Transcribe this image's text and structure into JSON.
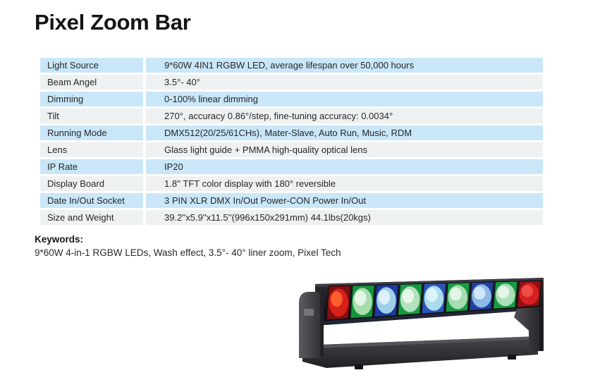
{
  "page": {
    "title": "Pixel Zoom Bar"
  },
  "spec_table": {
    "rows": [
      {
        "label": "Light Source",
        "value": "9*60W 4IN1 RGBW LED, average lifespan over 50,000 hours"
      },
      {
        "label": "Beam Angel",
        "value": "3.5°- 40°"
      },
      {
        "label": "Dimming",
        "value": "0-100% linear dimming"
      },
      {
        "label": "Tilt",
        "value": "270°, accuracy 0.86°/step, fine-tuning accuracy: 0.0034°"
      },
      {
        "label": "Running Mode",
        "value": "DMX512(20/25/61CHs), Mater-Slave, Auto Run, Music, RDM"
      },
      {
        "label": "Lens",
        "value": "Glass light guide + PMMA high-quality optical lens"
      },
      {
        "label": "IP Rate",
        "value": "IP20"
      },
      {
        "label": "Display Board",
        "value": "1.8'' TFT color display with 180° reversible"
      },
      {
        "label": "Date In/Out Socket",
        "value": "3 PIN XLR DMX In/Out Power-CON Power In/Out"
      },
      {
        "label": "Size and Weight",
        "value": "39.2''x5.9''x11.5''(996x150x291mm) 44.1lbs(20kgs)"
      }
    ]
  },
  "keywords": {
    "heading": "Keywords:",
    "text": "9*60W 4-in-1 RGBW LEDs, Wash effect, 3.5°- 40° liner zoom, Pixel Tech"
  },
  "colors": {
    "row_blue": "#c9e7f8",
    "row_gray": "#eef1f2",
    "text": "#232323"
  },
  "product_image": {
    "lenses": [
      {
        "body": "#7d0f10",
        "orb": "#d8201a",
        "glow": "#ff6a33"
      },
      {
        "body": "#15923d",
        "orb": "#a8dcae",
        "glow": "#eef9ef"
      },
      {
        "body": "#1d3aa0",
        "orb": "#9fd0e8",
        "glow": "#e9f6fc"
      },
      {
        "body": "#179a43",
        "orb": "#b2e2bc",
        "glow": "#f0fbf2"
      },
      {
        "body": "#2b55b8",
        "orb": "#aadcec",
        "glow": "#e8f7fb"
      },
      {
        "body": "#179a43",
        "orb": "#a5dcb0",
        "glow": "#ecf9ee"
      },
      {
        "body": "#203f9e",
        "orb": "#8fb9e6",
        "glow": "#dceefb"
      },
      {
        "body": "#179a43",
        "orb": "#abdfb6",
        "glow": "#eef9f0"
      },
      {
        "body": "#8f1013",
        "orb": "#d81f22",
        "glow": "#f2574d"
      }
    ]
  }
}
